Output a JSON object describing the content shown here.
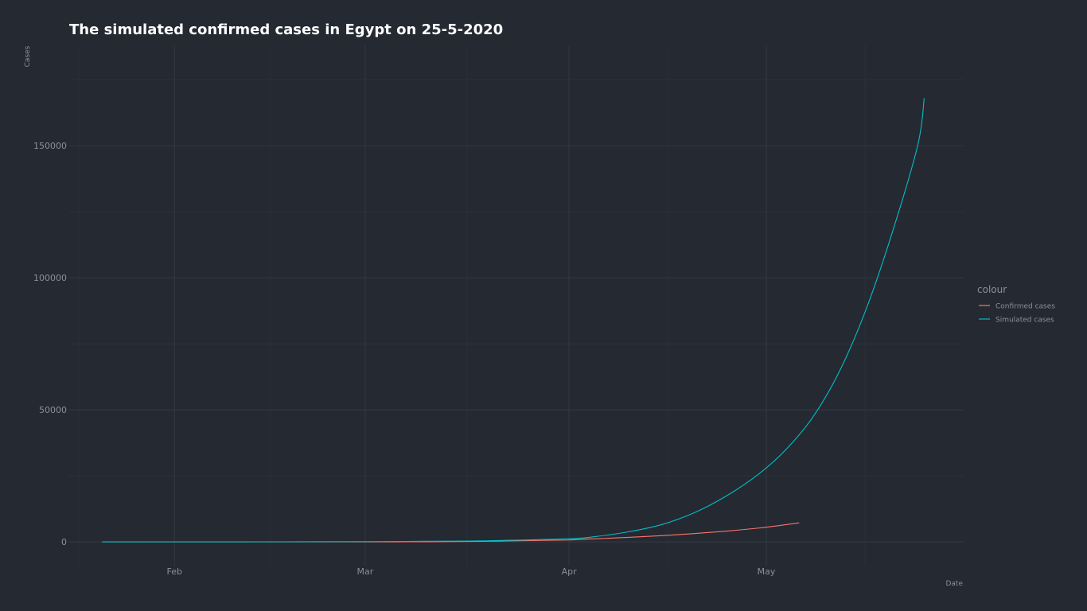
{
  "chart_data": {
    "type": "line",
    "title": "The simulated confirmed cases in Egypt on 25-5-2020",
    "xlabel": "Date",
    "ylabel": "Cases",
    "x_ticks": [
      {
        "label": "Feb",
        "date": "2020-02-01"
      },
      {
        "label": "Mar",
        "date": "2020-03-01"
      },
      {
        "label": "Apr",
        "date": "2020-04-01"
      },
      {
        "label": "May",
        "date": "2020-05-01"
      }
    ],
    "xlim": [
      "2020-01-16",
      "2020-05-31"
    ],
    "y_ticks": [
      0,
      50000,
      100000,
      150000
    ],
    "ylim": [
      -9000,
      188000
    ],
    "grid": true,
    "legend": {
      "title": "colour",
      "position": "right"
    },
    "series": [
      {
        "name": "Confirmed cases",
        "color": "#f8766d",
        "points": [
          {
            "x": "2020-01-21",
            "y": 0
          },
          {
            "x": "2020-02-14",
            "y": 1
          },
          {
            "x": "2020-03-01",
            "y": 2
          },
          {
            "x": "2020-03-08",
            "y": 48
          },
          {
            "x": "2020-03-15",
            "y": 110
          },
          {
            "x": "2020-03-22",
            "y": 327
          },
          {
            "x": "2020-03-29",
            "y": 609
          },
          {
            "x": "2020-04-01",
            "y": 710
          },
          {
            "x": "2020-04-05",
            "y": 1173
          },
          {
            "x": "2020-04-10",
            "y": 1699
          },
          {
            "x": "2020-04-15",
            "y": 2350
          },
          {
            "x": "2020-04-20",
            "y": 3144
          },
          {
            "x": "2020-04-25",
            "y": 4092
          },
          {
            "x": "2020-04-30",
            "y": 5268
          },
          {
            "x": "2020-05-03",
            "y": 6193
          },
          {
            "x": "2020-05-06",
            "y": 7201
          }
        ]
      },
      {
        "name": "Simulated cases",
        "color": "#00bfc4",
        "points": [
          {
            "x": "2020-01-21",
            "y": 0
          },
          {
            "x": "2020-02-10",
            "y": 20
          },
          {
            "x": "2020-03-01",
            "y": 100
          },
          {
            "x": "2020-03-10",
            "y": 250
          },
          {
            "x": "2020-03-20",
            "y": 450
          },
          {
            "x": "2020-04-01",
            "y": 1200
          },
          {
            "x": "2020-04-05",
            "y": 2000
          },
          {
            "x": "2020-04-10",
            "y": 3800
          },
          {
            "x": "2020-04-15",
            "y": 6500
          },
          {
            "x": "2020-04-20",
            "y": 11000
          },
          {
            "x": "2020-04-25",
            "y": 17500
          },
          {
            "x": "2020-04-30",
            "y": 26000
          },
          {
            "x": "2020-05-04",
            "y": 35000
          },
          {
            "x": "2020-05-08",
            "y": 47000
          },
          {
            "x": "2020-05-12",
            "y": 64000
          },
          {
            "x": "2020-05-16",
            "y": 87000
          },
          {
            "x": "2020-05-20",
            "y": 116000
          },
          {
            "x": "2020-05-24",
            "y": 150000
          },
          {
            "x": "2020-05-25",
            "y": 168000
          }
        ]
      }
    ]
  }
}
